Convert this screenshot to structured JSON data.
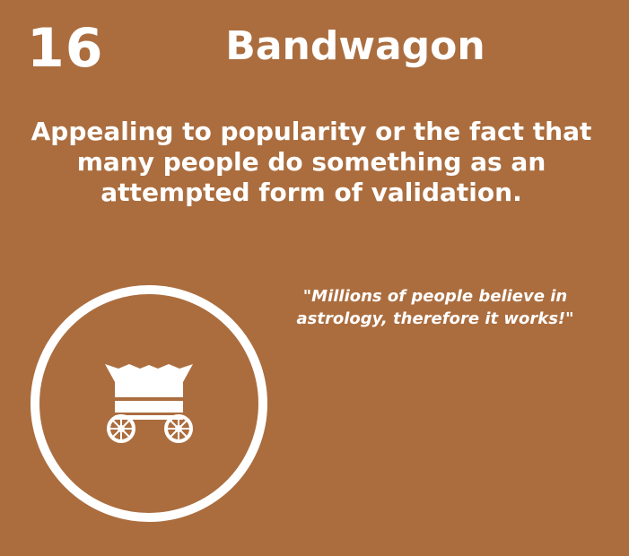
{
  "card": {
    "number": "16",
    "title": "Bandwagon",
    "definition": "Appealing to popularity or the fact that many people do something as an attempted form of validation.",
    "example": "\"Millions of people believe in astrology, therefore it works!\"",
    "icon": "covered-wagon-icon",
    "colors": {
      "background": "#ab6d3e",
      "foreground": "#ffffff"
    }
  }
}
